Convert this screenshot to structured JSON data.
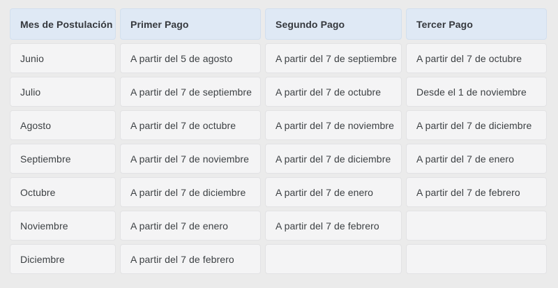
{
  "table": {
    "columns": [
      "Mes de Postulación",
      "Primer Pago",
      "Segundo Pago",
      "Tercer Pago"
    ],
    "rows": [
      [
        "Junio",
        "A partir del 5 de agosto",
        "A partir del 7 de septiembre",
        "A partir del 7 de octubre"
      ],
      [
        "Julio",
        "A partir del 7 de septiembre",
        "A partir del 7 de octubre",
        "Desde el 1 de noviembre"
      ],
      [
        "Agosto",
        "A partir del 7 de octubre",
        "A partir del 7 de noviembre",
        "A partir del 7 de diciembre"
      ],
      [
        "Septiembre",
        "A partir del 7 de noviembre",
        "A partir del 7 de diciembre",
        "A partir del 7 de enero"
      ],
      [
        "Octubre",
        "A partir del 7 de diciembre",
        "A partir del 7 de enero",
        "A partir del 7 de febrero"
      ],
      [
        "Noviembre",
        "A partir del 7 de enero",
        "A partir del 7 de febrero",
        ""
      ],
      [
        "Diciembre",
        "A partir del 7 de febrero",
        "",
        ""
      ]
    ]
  },
  "colors": {
    "page_background": "#ebebeb",
    "header_background": "#dfe9f5",
    "cell_background": "#f4f4f5",
    "text": "#3c4043"
  }
}
